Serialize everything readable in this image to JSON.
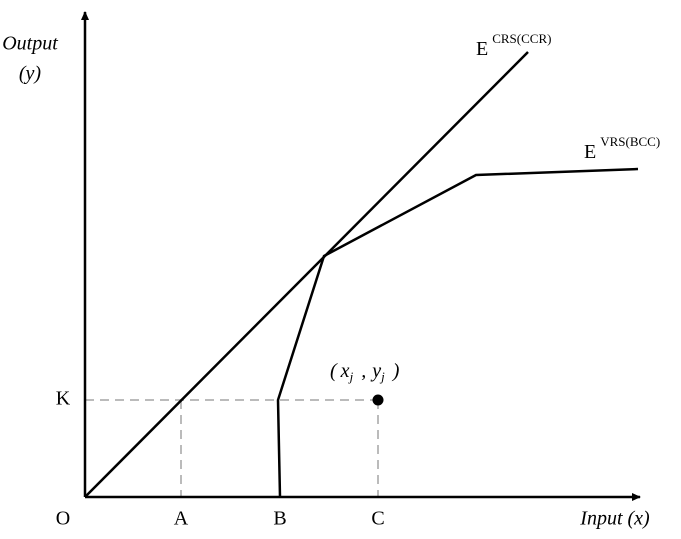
{
  "axes": {
    "y_label": "Output",
    "y_label_unit": "(y)",
    "x_label": "Input (x)",
    "origin": "O"
  },
  "x_points": [
    "A",
    "B",
    "C"
  ],
  "y_points": [
    "K"
  ],
  "frontiers": [
    {
      "label": "E",
      "superscript": "CRS(CCR)"
    },
    {
      "label": "E",
      "superscript": "VRS(BCC)"
    }
  ],
  "point": {
    "open": "(",
    "x": "x",
    "x_sub": "j",
    "sep": ",",
    "y": "y",
    "y_sub": "j",
    "close": ")"
  }
}
